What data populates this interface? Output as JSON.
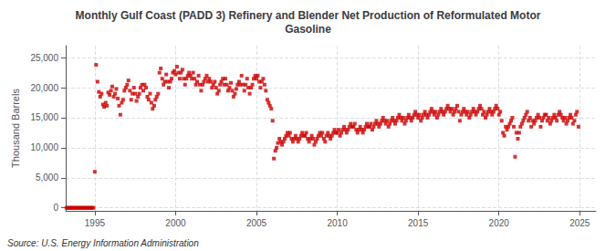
{
  "chart_data": {
    "type": "scatter",
    "title": "Monthly Gulf Coast (PADD 3) Refinery and Blender Net Production of Reformulated Motor\nGasoline",
    "ylabel": "Thousand Barrels",
    "annotations": [
      "Source: U.S. Energy Information Administration"
    ],
    "color": "#cc0000",
    "marker": "square",
    "grid": true,
    "xlim": [
      1993.2,
      2026.0
    ],
    "xticks": [
      1995,
      2000,
      2005,
      2010,
      2015,
      2020,
      2025
    ],
    "ylim": [
      -500,
      27000
    ],
    "yticks": [
      0,
      {
        "value": 5000,
        "label": "5,000"
      },
      {
        "value": 10000,
        "label": "10,000"
      },
      {
        "value": 15000,
        "label": "15,000"
      },
      {
        "value": 20000,
        "label": "20,000"
      },
      {
        "value": 25000,
        "label": "25,000"
      }
    ],
    "x": [
      1993.25,
      1993.33,
      1993.42,
      1993.5,
      1993.58,
      1993.67,
      1993.75,
      1993.83,
      1993.92,
      1994.0,
      1994.08,
      1994.17,
      1994.25,
      1994.33,
      1994.42,
      1994.5,
      1994.58,
      1994.67,
      1994.75,
      1994.83,
      1994.92,
      1995.0,
      1995.08,
      1995.17,
      1995.25,
      1995.33,
      1995.42,
      1995.5,
      1995.58,
      1995.67,
      1995.75,
      1995.83,
      1995.92,
      1996.0,
      1996.08,
      1996.17,
      1996.25,
      1996.33,
      1996.42,
      1996.5,
      1996.58,
      1996.67,
      1996.75,
      1996.83,
      1996.92,
      1997.0,
      1997.08,
      1997.17,
      1997.25,
      1997.33,
      1997.42,
      1997.5,
      1997.58,
      1997.67,
      1997.75,
      1997.83,
      1997.92,
      1998.0,
      1998.08,
      1998.17,
      1998.25,
      1998.33,
      1998.42,
      1998.5,
      1998.58,
      1998.67,
      1998.75,
      1998.83,
      1998.92,
      1999.0,
      1999.08,
      1999.17,
      1999.25,
      1999.33,
      1999.42,
      1999.5,
      1999.58,
      1999.67,
      1999.75,
      1999.83,
      1999.92,
      2000.0,
      2000.08,
      2000.17,
      2000.25,
      2000.33,
      2000.42,
      2000.5,
      2000.58,
      2000.67,
      2000.75,
      2000.83,
      2000.92,
      2001.0,
      2001.08,
      2001.17,
      2001.25,
      2001.33,
      2001.42,
      2001.5,
      2001.58,
      2001.67,
      2001.75,
      2001.83,
      2001.92,
      2002.0,
      2002.08,
      2002.17,
      2002.25,
      2002.33,
      2002.42,
      2002.5,
      2002.58,
      2002.67,
      2002.75,
      2002.83,
      2002.92,
      2003.0,
      2003.08,
      2003.17,
      2003.25,
      2003.33,
      2003.42,
      2003.5,
      2003.58,
      2003.67,
      2003.75,
      2003.83,
      2003.92,
      2004.0,
      2004.08,
      2004.17,
      2004.25,
      2004.33,
      2004.42,
      2004.5,
      2004.58,
      2004.67,
      2004.75,
      2004.83,
      2004.92,
      2005.0,
      2005.08,
      2005.17,
      2005.25,
      2005.33,
      2005.42,
      2005.5,
      2005.58,
      2005.67,
      2005.75,
      2005.83,
      2005.92,
      2006.0,
      2006.08,
      2006.17,
      2006.25,
      2006.33,
      2006.42,
      2006.5,
      2006.58,
      2006.67,
      2006.75,
      2006.83,
      2006.92,
      2007.0,
      2007.08,
      2007.17,
      2007.25,
      2007.33,
      2007.42,
      2007.5,
      2007.58,
      2007.67,
      2007.75,
      2007.83,
      2007.92,
      2008.0,
      2008.08,
      2008.17,
      2008.25,
      2008.33,
      2008.42,
      2008.5,
      2008.58,
      2008.67,
      2008.75,
      2008.83,
      2008.92,
      2009.0,
      2009.08,
      2009.17,
      2009.25,
      2009.33,
      2009.42,
      2009.5,
      2009.58,
      2009.67,
      2009.75,
      2009.83,
      2009.92,
      2010.0,
      2010.08,
      2010.17,
      2010.25,
      2010.33,
      2010.42,
      2010.5,
      2010.58,
      2010.67,
      2010.75,
      2010.83,
      2010.92,
      2011.0,
      2011.08,
      2011.17,
      2011.25,
      2011.33,
      2011.42,
      2011.5,
      2011.58,
      2011.67,
      2011.75,
      2011.83,
      2011.92,
      2012.0,
      2012.08,
      2012.17,
      2012.25,
      2012.33,
      2012.42,
      2012.5,
      2012.58,
      2012.67,
      2012.75,
      2012.83,
      2012.92,
      2013.0,
      2013.08,
      2013.17,
      2013.25,
      2013.33,
      2013.42,
      2013.5,
      2013.58,
      2013.67,
      2013.75,
      2013.83,
      2013.92,
      2014.0,
      2014.08,
      2014.17,
      2014.25,
      2014.33,
      2014.42,
      2014.5,
      2014.58,
      2014.67,
      2014.75,
      2014.83,
      2014.92,
      2015.0,
      2015.08,
      2015.17,
      2015.25,
      2015.33,
      2015.42,
      2015.5,
      2015.58,
      2015.67,
      2015.75,
      2015.83,
      2015.92,
      2016.0,
      2016.08,
      2016.17,
      2016.25,
      2016.33,
      2016.42,
      2016.5,
      2016.58,
      2016.67,
      2016.75,
      2016.83,
      2016.92,
      2017.0,
      2017.08,
      2017.17,
      2017.25,
      2017.33,
      2017.42,
      2017.5,
      2017.58,
      2017.67,
      2017.75,
      2017.83,
      2017.92,
      2018.0,
      2018.08,
      2018.17,
      2018.25,
      2018.33,
      2018.42,
      2018.5,
      2018.58,
      2018.67,
      2018.75,
      2018.83,
      2018.92,
      2019.0,
      2019.08,
      2019.17,
      2019.25,
      2019.33,
      2019.42,
      2019.5,
      2019.58,
      2019.67,
      2019.75,
      2019.83,
      2019.92,
      2020.0,
      2020.08,
      2020.17,
      2020.25,
      2020.33,
      2020.42,
      2020.5,
      2020.58,
      2020.67,
      2020.75,
      2020.83,
      2020.92,
      2021.0,
      2021.08,
      2021.17,
      2021.25,
      2021.33,
      2021.42,
      2021.5,
      2021.58,
      2021.67,
      2021.75,
      2021.83,
      2021.92,
      2022.0,
      2022.08,
      2022.17,
      2022.25,
      2022.33,
      2022.42,
      2022.5,
      2022.58,
      2022.67,
      2022.75,
      2022.83,
      2022.92,
      2023.0,
      2023.08,
      2023.17,
      2023.25,
      2023.33,
      2023.42,
      2023.5,
      2023.58,
      2023.67,
      2023.75,
      2023.83,
      2023.92,
      2024.0,
      2024.08,
      2024.17,
      2024.25,
      2024.33,
      2024.42,
      2024.5,
      2024.58,
      2024.67,
      2024.75,
      2024.83,
      2024.92
    ],
    "values": [
      0,
      0,
      0,
      0,
      0,
      0,
      0,
      0,
      0,
      0,
      0,
      0,
      0,
      0,
      0,
      0,
      0,
      0,
      0,
      0,
      0,
      6000,
      23800,
      21000,
      19300,
      18500,
      19000,
      17200,
      16800,
      17500,
      17000,
      19200,
      18800,
      19500,
      20200,
      18500,
      19000,
      19800,
      18200,
      17000,
      15500,
      17500,
      18000,
      19500,
      20000,
      20500,
      21200,
      19500,
      18000,
      19000,
      20000,
      19000,
      17800,
      18500,
      19000,
      20000,
      20500,
      19500,
      20500,
      20000,
      18500,
      18000,
      19000,
      17500,
      16500,
      17000,
      18000,
      18500,
      19000,
      22500,
      23200,
      21500,
      20500,
      21000,
      22200,
      21000,
      20000,
      21000,
      21500,
      22500,
      22800,
      22200,
      23500,
      22500,
      21500,
      22500,
      23000,
      21500,
      20500,
      21500,
      22000,
      22500,
      22000,
      21500,
      22500,
      21500,
      20500,
      21000,
      22000,
      20500,
      19500,
      20500,
      21000,
      21500,
      22000,
      21000,
      21500,
      21000,
      20000,
      20500,
      21000,
      20000,
      19000,
      19500,
      20500,
      21000,
      21500,
      20500,
      21500,
      20500,
      19500,
      20000,
      20800,
      19500,
      18500,
      19000,
      19800,
      20500,
      21000,
      20500,
      22000,
      20500,
      19500,
      20500,
      21500,
      20000,
      19000,
      20000,
      20500,
      21500,
      22000,
      21500,
      22000,
      21000,
      20000,
      21000,
      21500,
      20500,
      19500,
      18000,
      17500,
      17000,
      16500,
      14500,
      8200,
      9500,
      10000,
      10800,
      11500,
      11000,
      10500,
      11000,
      11500,
      12000,
      12500,
      12000,
      12500,
      11500,
      11000,
      11500,
      12000,
      11500,
      11000,
      11500,
      12000,
      12500,
      12000,
      12000,
      12500,
      11500,
      11000,
      11500,
      12000,
      11500,
      10500,
      11000,
      11500,
      12000,
      12500,
      12000,
      12500,
      11500,
      11000,
      12000,
      12500,
      12000,
      11500,
      12000,
      12500,
      13000,
      12500,
      12500,
      13000,
      12000,
      12500,
      13000,
      13500,
      13000,
      12500,
      13000,
      13500,
      14000,
      13500,
      13500,
      14000,
      13000,
      12500,
      13000,
      13500,
      13000,
      12500,
      13000,
      13500,
      14000,
      13500,
      13500,
      14000,
      13000,
      13500,
      14000,
      14500,
      14000,
      13500,
      14000,
      14500,
      15000,
      14500,
      14000,
      14500,
      13500,
      14000,
      14500,
      15000,
      14500,
      14000,
      14500,
      15000,
      15500,
      15000,
      14500,
      15000,
      14000,
      14500,
      15000,
      15500,
      15000,
      14500,
      15000,
      15500,
      16000,
      15500,
      15000,
      15500,
      14500,
      15000,
      15500,
      16000,
      15500,
      15000,
      15500,
      16000,
      16500,
      16000,
      15500,
      16000,
      15000,
      15500,
      16000,
      16500,
      16000,
      15500,
      16000,
      16500,
      17000,
      16500,
      16000,
      16500,
      15500,
      16000,
      16500,
      17000,
      16000,
      14500,
      15500,
      16000,
      16500,
      16000,
      15500,
      16000,
      15000,
      15500,
      16000,
      16500,
      16000,
      15500,
      16000,
      16500,
      17000,
      16500,
      15500,
      16000,
      15000,
      15500,
      16000,
      16500,
      16000,
      15500,
      16000,
      16500,
      17000,
      16500,
      15500,
      16000,
      14500,
      12500,
      12000,
      13500,
      13000,
      13500,
      14000,
      14500,
      15000,
      13500,
      8500,
      12500,
      11500,
      12500,
      13500,
      14000,
      14500,
      15000,
      15500,
      16000,
      14500,
      15000,
      13500,
      14500,
      14000,
      14500,
      15000,
      15500,
      15000,
      13500,
      14500,
      15000,
      15500,
      15500,
      14500,
      15000,
      14000,
      14500,
      15000,
      15500,
      15000,
      14500,
      15500,
      16000,
      15500,
      15000,
      14500,
      15000,
      14000,
      14500,
      15000,
      15500,
      15000,
      14000,
      14500,
      15500,
      16000,
      13500
    ]
  }
}
